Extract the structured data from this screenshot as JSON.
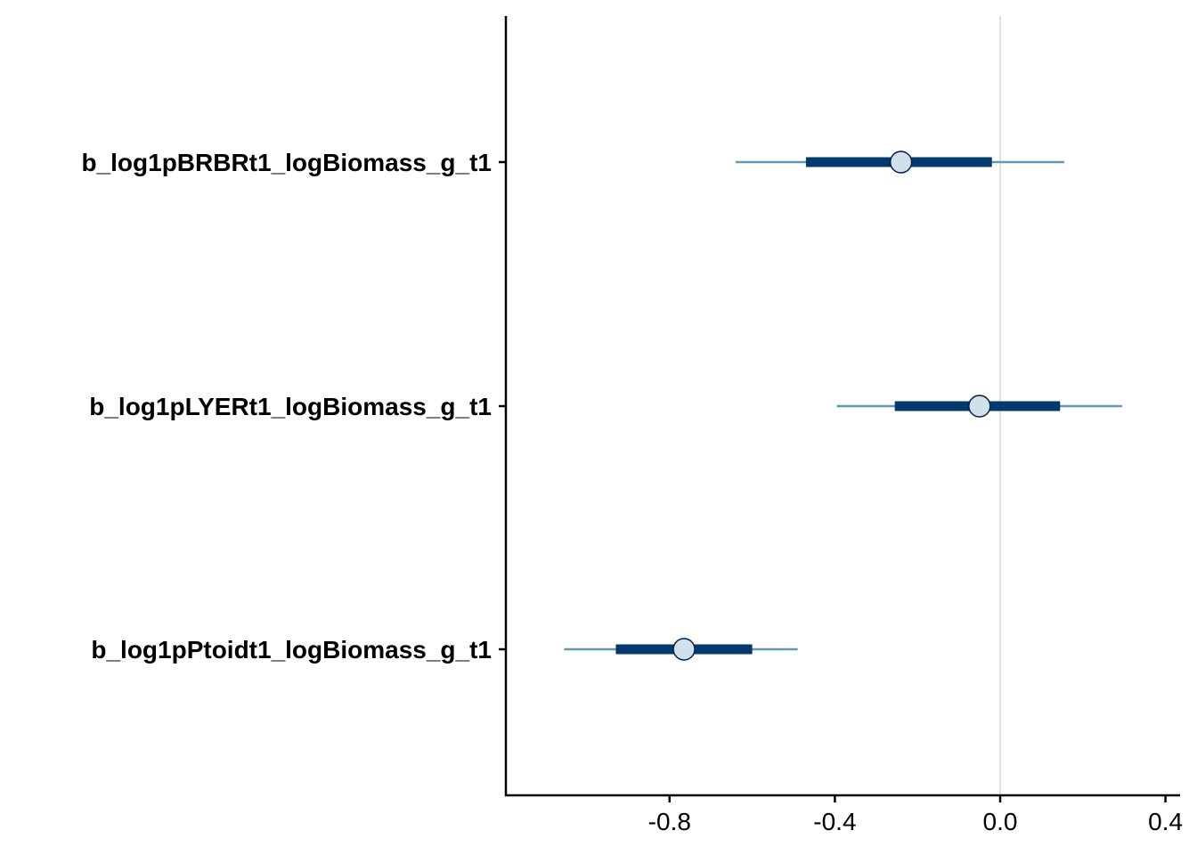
{
  "chart_data": {
    "type": "interval",
    "title": "",
    "xlabel": "",
    "ylabel": "",
    "xlim": [
      -1.2,
      0.43
    ],
    "x_ticks": [
      -0.8,
      -0.4,
      0.0,
      0.4
    ],
    "x_tick_labels": [
      "-0.8",
      "-0.4",
      "0.0",
      "0.4"
    ],
    "reference_line": 0.0,
    "grid": false,
    "series": [
      {
        "label": "b_log1pBRBRt1_logBiomass_g_t1",
        "point": -0.24,
        "inner": [
          -0.47,
          -0.02
        ],
        "outer": [
          -0.64,
          0.155
        ]
      },
      {
        "label": "b_log1pLYERt1_logBiomass_g_t1",
        "point": -0.05,
        "inner": [
          -0.255,
          0.145
        ],
        "outer": [
          -0.395,
          0.295
        ]
      },
      {
        "label": "b_log1pPtoidt1_logBiomass_g_t1",
        "point": -0.765,
        "inner": [
          -0.93,
          -0.6
        ],
        "outer": [
          -1.055,
          -0.49
        ]
      }
    ],
    "colors": {
      "outer_line": "#6497b1",
      "inner_line": "#03396c",
      "point_fill": "#d1e1ec",
      "point_stroke": "#011f4b",
      "reference_line": "#e0e0e0",
      "axis": "#000000"
    }
  }
}
